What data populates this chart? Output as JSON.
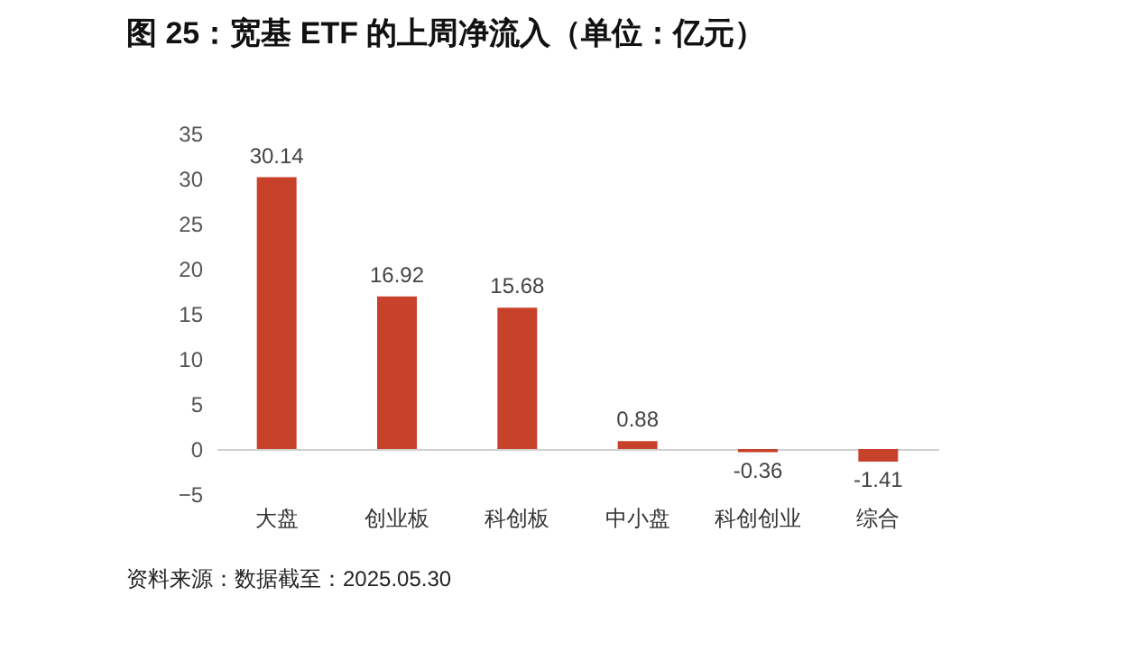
{
  "chart_data": {
    "type": "bar",
    "title": "图 25：宽基 ETF 的上周净流入（单位：亿元）",
    "categories": [
      "大盘",
      "创业板",
      "科创板",
      "中小盘",
      "科创创业",
      "综合"
    ],
    "values": [
      30.14,
      16.92,
      15.68,
      0.88,
      -0.36,
      -1.41
    ],
    "color": "#c8412a",
    "ylim": [
      -5,
      35
    ],
    "yticks": [
      -5,
      0,
      5,
      10,
      15,
      20,
      25,
      30,
      35
    ],
    "grid": false,
    "data_labels": true,
    "annotations": [
      "资料来源：数据截至：2025.05.30"
    ]
  }
}
